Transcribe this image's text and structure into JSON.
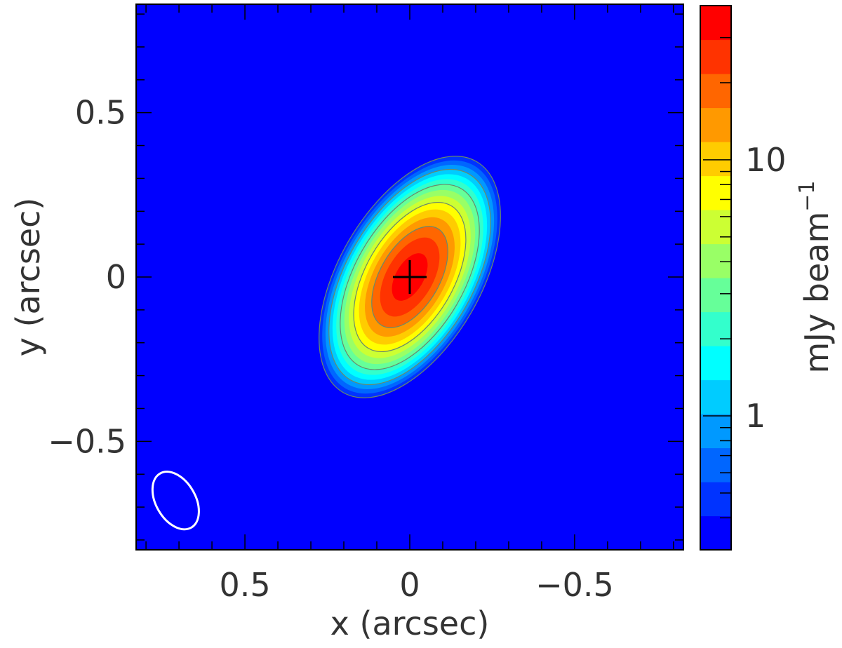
{
  "chart_data": {
    "type": "heatmap",
    "xlabel": "x (arcsec)",
    "ylabel": "y (arcsec)",
    "x_range": [
      0.83,
      -0.83
    ],
    "y_range": [
      -0.83,
      0.83
    ],
    "x_ticks": [
      {
        "value": 0.5,
        "label": "0.5"
      },
      {
        "value": 0,
        "label": "0"
      },
      {
        "value": -0.5,
        "label": "−0.5"
      }
    ],
    "y_ticks": [
      {
        "value": 0.5,
        "label": "0.5"
      },
      {
        "value": 0,
        "label": "0"
      },
      {
        "value": -0.5,
        "label": "−0.5"
      }
    ],
    "minor_tick_step": 0.1,
    "background_color": "#0000ff",
    "source": {
      "peak_mJy_beam": 35,
      "center": [
        0,
        0
      ],
      "fwhm_major_arcsec": 0.32,
      "fwhm_minor_arcsec": 0.17,
      "major_axis_angle_from_north_deg": 30,
      "marker": "cross"
    },
    "beam": {
      "center": [
        0.71,
        -0.68
      ],
      "major_arcsec": 0.19,
      "minor_arcsec": 0.12,
      "angle_from_north_deg": 30,
      "color": "#ffffff"
    },
    "colorbar": {
      "label": "mJy beam",
      "label_superscript": "−1",
      "scale": "log",
      "range": [
        0.3,
        40
      ],
      "major_ticks": [
        {
          "value": 1,
          "label": "1"
        },
        {
          "value": 10,
          "label": "10"
        }
      ],
      "colors": [
        "#0000ff",
        "#0033ff",
        "#0066ff",
        "#0099ff",
        "#00ccff",
        "#00ffff",
        "#33ffcc",
        "#66ff99",
        "#99ff66",
        "#ccff33",
        "#ffff00",
        "#ffcc00",
        "#ff9900",
        "#ff6600",
        "#ff3300",
        "#ff0000"
      ]
    }
  }
}
